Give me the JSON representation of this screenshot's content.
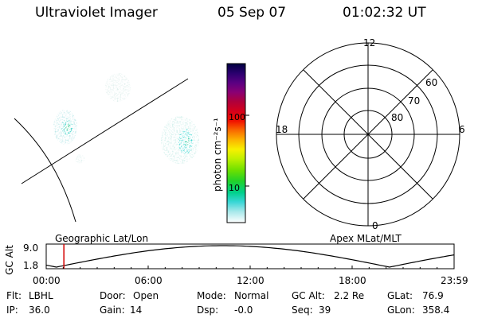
{
  "header": {
    "title": "Ultraviolet Imager",
    "date": "05 Sep 07",
    "time": "01:02:32 UT"
  },
  "colorbar": {
    "unit_label": "photon cm⁻²s⁻¹",
    "ticks": [
      "100",
      "10"
    ],
    "stops": [
      "#000040",
      "#2a006e",
      "#5a0082",
      "#8a0074",
      "#b0003a",
      "#d6001a",
      "#f01000",
      "#f96a00",
      "#fcb400",
      "#f7f000",
      "#bef000",
      "#6ee000",
      "#20d22a",
      "#00d08a",
      "#38d6d6",
      "#a6e8ea",
      "#ffffff"
    ]
  },
  "polar": {
    "labels": {
      "top": "12",
      "bottom": "0",
      "left": "18",
      "right": "6"
    },
    "lat_labels": [
      "60",
      "70",
      "80"
    ]
  },
  "altitude_plot": {
    "ylabel": "GC Alt",
    "y_ticks": [
      "9.0",
      "1.8"
    ],
    "x_ticks": [
      "00:00",
      "06:00",
      "12:00",
      "18:00",
      "23:59"
    ],
    "left_title": "Geographic Lat/Lon",
    "right_title": "Apex MLat/MLT",
    "current_time_hours": 1.04
  },
  "info": {
    "filter": {
      "label": "Flt:",
      "value": "LBHL"
    },
    "ip": {
      "label": "IP:",
      "value": "36.0"
    },
    "door": {
      "label": "Door:",
      "value": "Open"
    },
    "gain": {
      "label": "Gain:",
      "value": "14"
    },
    "mode": {
      "label": "Mode:",
      "value": "Normal"
    },
    "dsp": {
      "label": "Dsp:",
      "value": "-0.0"
    },
    "gc_alt": {
      "label": "GC Alt:",
      "value": "2.2 Re"
    },
    "seq": {
      "label": "Seq:",
      "value": "39"
    },
    "glat": {
      "label": "GLat:",
      "value": "76.9"
    },
    "glon": {
      "label": "GLon:",
      "value": "358.4"
    }
  }
}
